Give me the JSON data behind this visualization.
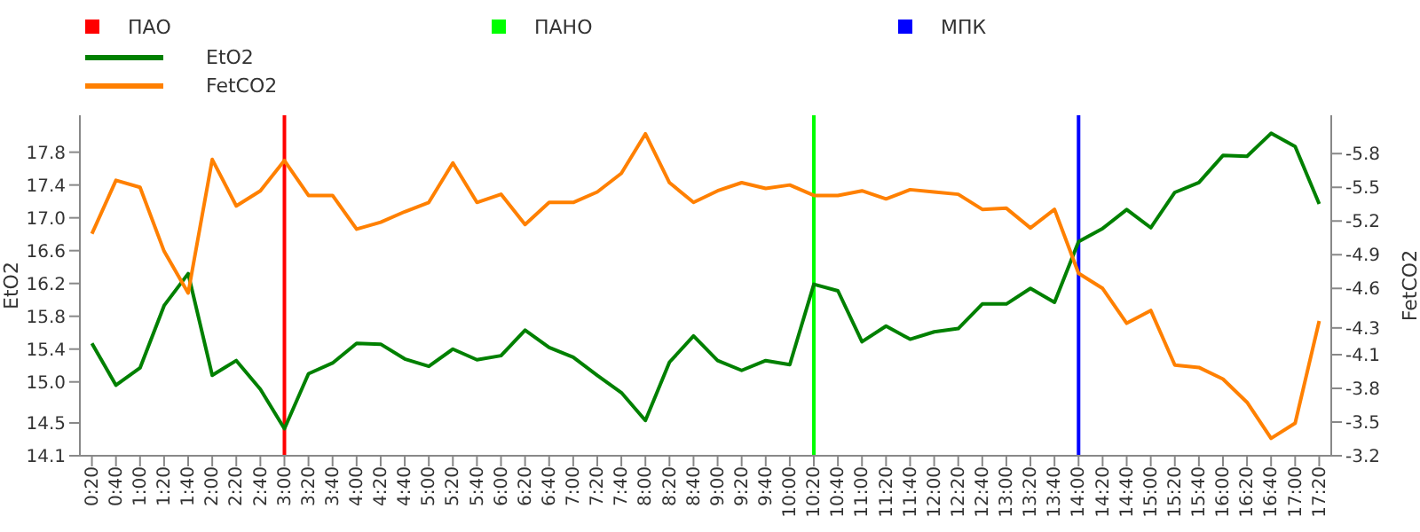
{
  "chart_data": {
    "type": "line",
    "ylabel": "EtO2",
    "y2label": "FetCO2",
    "categories": [
      "0:20",
      "0:40",
      "1:00",
      "1:20",
      "1:40",
      "2:00",
      "2:20",
      "2:40",
      "3:00",
      "3:20",
      "3:40",
      "4:00",
      "4:20",
      "4:40",
      "5:00",
      "5:20",
      "5:40",
      "6:00",
      "6:20",
      "6:40",
      "7:00",
      "7:20",
      "7:40",
      "8:00",
      "8:20",
      "8:40",
      "9:00",
      "9:20",
      "9:40",
      "10:00",
      "10:20",
      "10:40",
      "11:00",
      "11:20",
      "11:40",
      "12:00",
      "12:20",
      "12:40",
      "13:00",
      "13:20",
      "13:40",
      "14:00",
      "14:20",
      "14:40",
      "15:00",
      "15:20",
      "15:40",
      "16:00",
      "16:20",
      "16:40",
      "17:00",
      "17:20"
    ],
    "series": [
      {
        "name": "EtO2",
        "color": "#008000",
        "values": [
          15.47,
          14.96,
          15.17,
          15.93,
          16.32,
          15.08,
          15.26,
          14.91,
          14.43,
          15.1,
          15.23,
          15.47,
          15.46,
          15.28,
          15.19,
          15.4,
          15.27,
          15.32,
          15.63,
          15.42,
          15.3,
          15.08,
          14.87,
          14.53,
          15.24,
          15.56,
          15.26,
          15.14,
          15.26,
          15.21,
          16.19,
          16.11,
          15.49,
          15.68,
          15.52,
          15.61,
          15.65,
          15.95,
          15.95,
          16.14,
          15.97,
          16.71,
          16.87,
          17.1,
          16.88,
          17.31,
          17.43,
          17.76,
          17.75,
          18.03,
          17.87,
          17.17
        ]
      },
      {
        "name": "FetCO2",
        "color": "#ff8000",
        "axis": "y2",
        "values": [
          -5.11,
          -5.57,
          -5.51,
          -4.96,
          -4.6,
          -5.75,
          -5.35,
          -5.48,
          -5.74,
          -5.44,
          -5.44,
          -5.15,
          -5.21,
          -5.3,
          -5.38,
          -5.72,
          -5.38,
          -5.45,
          -5.19,
          -5.38,
          -5.38,
          -5.47,
          -5.63,
          -5.97,
          -5.55,
          -5.38,
          -5.48,
          -5.55,
          -5.5,
          -5.53,
          -5.44,
          -5.44,
          -5.48,
          -5.41,
          -5.49,
          -5.47,
          -5.45,
          -5.32,
          -5.33,
          -5.16,
          -5.32,
          -4.77,
          -4.64,
          -4.34,
          -4.45,
          -3.98,
          -3.96,
          -3.86,
          -3.66,
          -3.35,
          -3.48,
          -4.36
        ]
      }
    ],
    "ylim": [
      14.1,
      18.25
    ],
    "yticks": [
      14.1,
      14.5,
      {
        "value": 15,
        "label": "15.0"
      },
      15.4,
      15.8,
      16.2,
      16.6,
      {
        "value": 17,
        "label": "17.0"
      },
      17.4,
      17.8
    ],
    "y2lim": [
      -3.2,
      -6.13
    ],
    "y2ticks": [
      -3.2,
      {
        "value": -3.49,
        "label": "-3.5"
      },
      {
        "value": -3.78,
        "label": "-3.8"
      },
      {
        "value": -4.07,
        "label": "-4.1"
      },
      -4.3,
      {
        "value": -4.64,
        "label": "-4.6"
      },
      {
        "value": -4.93,
        "label": "-4.9"
      },
      {
        "value": -5.22,
        "label": "-5.2"
      },
      {
        "value": -5.51,
        "label": "-5.5"
      },
      -5.8
    ],
    "ref_lines": [
      {
        "axis": "x",
        "value": "3:00",
        "label": "ПАО",
        "color": "#ff0000"
      },
      {
        "axis": "x",
        "value": "10:20",
        "label": "ПАНО",
        "color": "#00ff00"
      },
      {
        "axis": "x",
        "value": "14:00",
        "label": "МПК",
        "color": "#0000ff"
      }
    ],
    "legend": "top",
    "marker": "none",
    "line_style": "solid"
  }
}
